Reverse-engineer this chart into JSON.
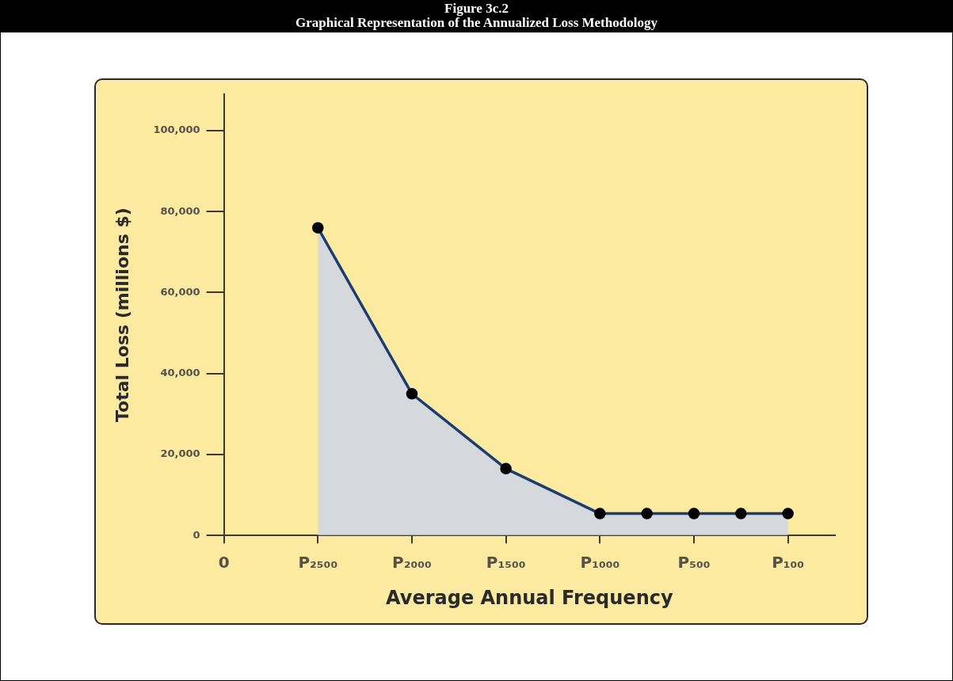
{
  "chart_data": {
    "type": "area",
    "title": "Figure 3c.2",
    "subtitle": "Graphical Representation of the Annualized Loss Methodology",
    "xlabel": "Average Annual Frequency",
    "ylabel": "Total Loss (millions $)",
    "categories": [
      "0",
      null,
      "P₂₅₀₀",
      null,
      "P₂₀₀₀",
      null,
      "P₁₅₀₀",
      null,
      "P₁₀₀₀",
      null,
      "P₅₀₀",
      null,
      "P₁₀₀",
      null
    ],
    "series": [
      {
        "color": "#1c3d6e",
        "values": [
          null,
          null,
          76000,
          null,
          35000,
          null,
          16500,
          null,
          5400,
          5400,
          5400,
          5400,
          5400,
          null
        ]
      }
    ],
    "ylim": [
      0,
      109000
    ],
    "yticks": [
      {
        "value": 0,
        "label": "0"
      },
      {
        "value": 20000,
        "label": "20,000"
      },
      {
        "value": 40000,
        "label": "40,000"
      },
      {
        "value": 60000,
        "label": "60,000"
      },
      {
        "value": 80000,
        "label": "80,000"
      },
      {
        "value": 100000,
        "label": "100,000"
      }
    ],
    "grid": false,
    "legend": false,
    "marker": "circle",
    "line_style": "solid"
  }
}
